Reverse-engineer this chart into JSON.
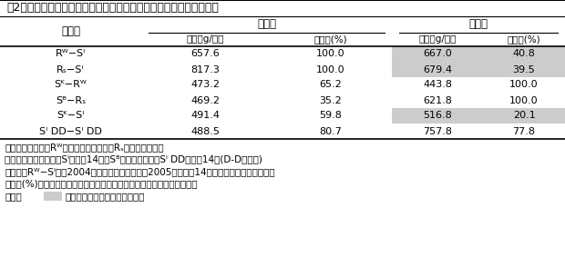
{
  "title": "表2　感受性－抵抗性カンショ交互作体系における収量および可販率",
  "col0_labels": [
    "Rᵂ−Sᴵ",
    "Rₛ−Sᴵ",
    "Sᴷ−Rᵂ",
    "Sᴮ−Rₛ",
    "Sᴷ−Sᴵ",
    "Sᴵ DD−Sᴵ DD"
  ],
  "col1": [
    "657.6",
    "817.3",
    "473.2",
    "469.2",
    "491.4",
    "488.5"
  ],
  "col2": [
    "100.0",
    "100.0",
    "65.2",
    "35.2",
    "59.8",
    "80.7"
  ],
  "col3": [
    "667.0",
    "679.4",
    "443.8",
    "621.8",
    "516.8",
    "757.8"
  ],
  "col4": [
    "40.8",
    "39.5",
    "100.0",
    "100.0",
    "20.1",
    "77.8"
  ],
  "shaded_rows_cols": [
    [
      0,
      2,
      3
    ],
    [
      1,
      2,
      3
    ],
    [
      4,
      2,
      3
    ]
  ],
  "shade_color": "#cccccc",
  "bg_color": "#ffffff",
  "footnote1": "抵抗性有色品種：Rᵂ；ムラサキマサリ、Rₛ；サニーレッド",
  "footnote2": "感受性の生食用品種：Sᴵ；高系14号、Sᴮ；ベニマサリ、Sᴵ DD；高系14号(D-D処理区)",
  "footnote3": "例えば「Rᵂ−Sᴵ」は2004年にムラサキマサリ、2005年に高系14号を作付けした区を示す。",
  "footnote4": "可販率(%)：線虫による被害が見られないか、または軽微なものの割合。",
  "footnote5a": "網掛け",
  "footnote5b": "は比較して見やすくするため。"
}
